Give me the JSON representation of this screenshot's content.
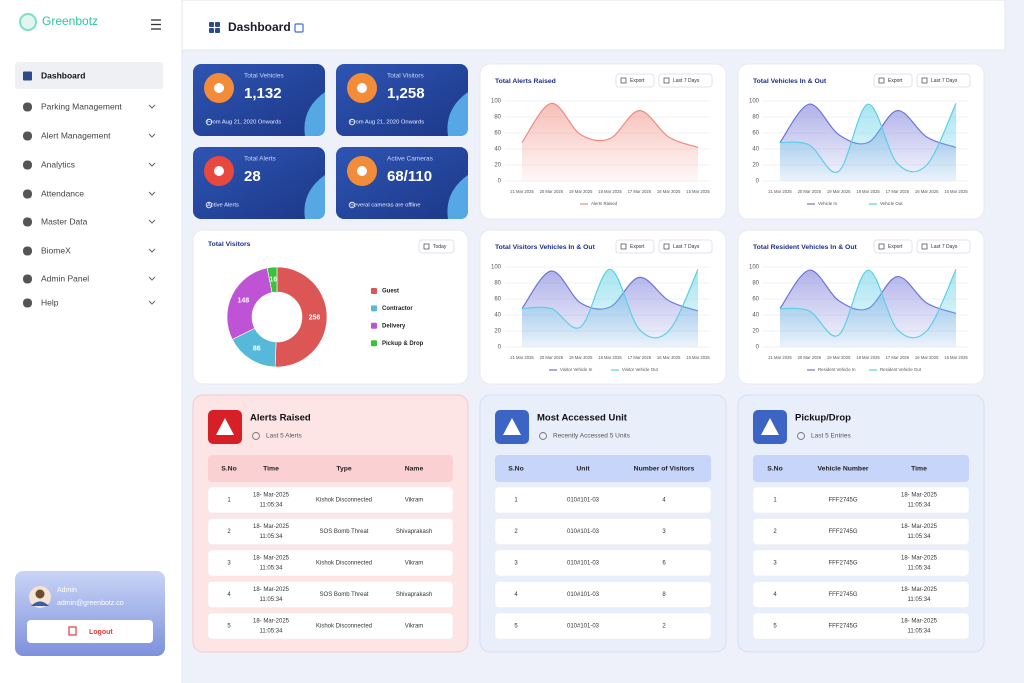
{
  "sidebar": {
    "brand": "Greenbotz",
    "menu": [
      "Dashboard",
      "Parking Management",
      "Alert Management",
      "Analytics",
      "Attendance",
      "Master Data",
      "BiomeX",
      "Admin Panel",
      "Help"
    ],
    "user": {
      "name": "Admin",
      "email": "admin@greenbotz.co",
      "logout": "Logout"
    }
  },
  "header": {
    "title": "Dashboard"
  },
  "stats": [
    {
      "label": "Total Vehicles",
      "value": "1,132",
      "note": "From Aug 21, 2020 Onwards"
    },
    {
      "label": "Total Visitors",
      "value": "1,258",
      "note": "From Aug 21, 2020 Onwards"
    },
    {
      "label": "Total Alerts",
      "value": "28",
      "note": "Active Alerts"
    },
    {
      "label": "Active Cameras",
      "value": "68/110",
      "note": "Several cameras are offline"
    }
  ],
  "chart_data": [
    {
      "type": "line",
      "title": "Total Alerts Raised",
      "buttons": [
        "Export",
        "Last 7 Days"
      ],
      "categories": [
        "21 Mar 2025",
        "20 Mar 2025",
        "19 Mar 2025",
        "18 Mar 2025",
        "17 Mar 2025",
        "16 Mar 2025",
        "15 Mar 2025"
      ],
      "series": [
        {
          "name": "Alerts Raised",
          "color": "#f08a7e",
          "values": [
            48,
            97,
            58,
            53,
            88,
            55,
            42
          ]
        }
      ],
      "ylim": [
        0,
        100
      ],
      "yticks": [
        0,
        20,
        40,
        60,
        80,
        100
      ],
      "grid": true
    },
    {
      "type": "line",
      "title": "Total Vehicles In & Out",
      "buttons": [
        "Export",
        "Last 7 Days"
      ],
      "categories": [
        "21 Mar 2025",
        "20 Mar 2025",
        "19 Mar 2025",
        "18 Mar 2025",
        "17 Mar 2025",
        "16 Mar 2025",
        "15 Mar 2025"
      ],
      "series": [
        {
          "name": "Vehicle In",
          "color": "#6f73d8",
          "values": [
            48,
            96,
            58,
            48,
            88,
            55,
            42
          ]
        },
        {
          "name": "Vehicle Out",
          "color": "#5dcfe6",
          "values": [
            48,
            45,
            12,
            96,
            22,
            20,
            97
          ]
        }
      ],
      "ylim": [
        0,
        100
      ],
      "yticks": [
        0,
        20,
        40,
        60,
        80,
        100
      ],
      "grid": true
    },
    {
      "type": "pie",
      "title": "Total Visitors",
      "buttons": [
        "Today"
      ],
      "categories": [
        "Guest",
        "Contractor",
        "Delivery",
        "Pickup & Drop"
      ],
      "values": [
        256,
        86,
        148,
        16
      ],
      "colors": [
        "#dc5656",
        "#56b9d9",
        "#bf53d6",
        "#3cc13b"
      ],
      "donut": true
    },
    {
      "type": "line",
      "title": "Total Visitors Vehicles In & Out",
      "buttons": [
        "Export",
        "Last 7 Days"
      ],
      "categories": [
        "21 Mar 2025",
        "20 Mar 2025",
        "19 Mar 2025",
        "18 Mar 2025",
        "17 Mar 2025",
        "16 Mar 2025",
        "15 Mar 2025"
      ],
      "series": [
        {
          "name": "Visitor Vehicle In",
          "color": "#6f73d8",
          "values": [
            48,
            95,
            55,
            50,
            87,
            58,
            45
          ]
        },
        {
          "name": "Visitor Vehicle Out",
          "color": "#5dcfe6",
          "values": [
            48,
            48,
            25,
            97,
            22,
            20,
            97
          ]
        }
      ],
      "ylim": [
        0,
        100
      ],
      "yticks": [
        0,
        20,
        40,
        60,
        80,
        100
      ],
      "grid": true
    },
    {
      "type": "line",
      "title": "Total Resident Vehicles In & Out",
      "buttons": [
        "Export",
        "Last 7 Days"
      ],
      "categories": [
        "21 Mar 2025",
        "20 Mar 2025",
        "19 Mar 2025",
        "18 Mar 2025",
        "17 Mar 2025",
        "16 Mar 2025",
        "15 Mar 2025"
      ],
      "series": [
        {
          "name": "Resident Vehicle In",
          "color": "#6f73d8",
          "values": [
            48,
            96,
            58,
            48,
            88,
            55,
            42
          ]
        },
        {
          "name": "Resident Vehicle Out",
          "color": "#5dcfe6",
          "values": [
            48,
            45,
            15,
            96,
            22,
            20,
            97
          ]
        }
      ],
      "ylim": [
        0,
        100
      ],
      "yticks": [
        0,
        20,
        40,
        60,
        80,
        100
      ],
      "grid": true
    }
  ],
  "tables": [
    {
      "title": "Alerts Raised",
      "subtitle": "Last 5 Alerts",
      "columns": [
        "S.No",
        "Time",
        "Type",
        "Name"
      ],
      "rows": [
        [
          1,
          [
            "18- Mar-2025",
            "11:05:34"
          ],
          "Kishok Disconnected",
          "Vikram"
        ],
        [
          2,
          [
            "18- Mar-2025",
            "11:05:34"
          ],
          "SOS Bomb Threat",
          "Shivaprakash"
        ],
        [
          3,
          [
            "18- Mar-2025",
            "11:05:34"
          ],
          "Kishok Disconnected",
          "Vikram"
        ],
        [
          4,
          [
            "18- Mar-2025",
            "11:05:34"
          ],
          "SOS Bomb Threat",
          "Shivaprakash"
        ],
        [
          5,
          [
            "18- Mar-2025",
            "11:05:34"
          ],
          "Kishok Disconnected",
          "Vikram"
        ]
      ]
    },
    {
      "title": "Most Accessed Unit",
      "subtitle": "Recently Accessed 5 Units",
      "columns": [
        "S.No",
        "Unit",
        "Number of Visitors"
      ],
      "rows": [
        [
          1,
          "010#101-03",
          4
        ],
        [
          2,
          "010#101-03",
          3
        ],
        [
          3,
          "010#101-03",
          6
        ],
        [
          4,
          "010#101-03",
          8
        ],
        [
          5,
          "010#101-03",
          2
        ]
      ]
    },
    {
      "title": "Pickup/Drop",
      "subtitle": "Last 5 Entries",
      "columns": [
        "S.No",
        "Vehicle Number",
        "Time"
      ],
      "rows": [
        [
          1,
          "FFF2745G",
          [
            "18- Mar-2025",
            "11:05:34"
          ]
        ],
        [
          2,
          "FFF2745G",
          [
            "18- Mar-2025",
            "11:05:34"
          ]
        ],
        [
          3,
          "FFF2745G",
          [
            "18- Mar-2025",
            "11:05:34"
          ]
        ],
        [
          4,
          "FFF2745G",
          [
            "18- Mar-2025",
            "11:05:34"
          ]
        ],
        [
          5,
          "FFF2745G",
          [
            "18- Mar-2025",
            "11:05:34"
          ]
        ]
      ]
    }
  ]
}
